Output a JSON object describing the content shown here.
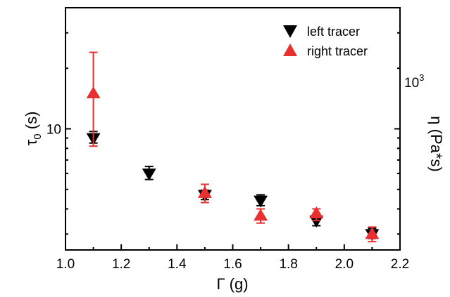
{
  "chart_data": {
    "type": "scatter",
    "xlabel": "Γ (g)",
    "ylabel_left": {
      "main": "τ",
      "sub": "0",
      "unit": " (s)"
    },
    "ylabel_right": "η (Pa*s)",
    "xlim": [
      1.0,
      2.2
    ],
    "x_ticks": [
      1.0,
      1.2,
      1.4,
      1.6,
      1.8,
      2.0,
      2.2
    ],
    "x_tick_labels": [
      "1.0",
      "1.2",
      "1.4",
      "1.6",
      "1.8",
      "2.0",
      "2.2"
    ],
    "y_left_scale": "log",
    "ylim_left": [
      2.5,
      40
    ],
    "y_left_major_tick": 10,
    "y_left_major_label": "10",
    "y_left_minor_ticks": [
      3,
      4,
      5,
      6,
      7,
      8,
      9,
      20,
      30
    ],
    "y_right_scale": "log",
    "ylim_right": [
      250,
      4000
    ],
    "y_right_major_tick": 1000,
    "y_right_major_label": {
      "base": "10",
      "exp": "3"
    },
    "y_right_minor_ticks": [
      300,
      400,
      500,
      600,
      700,
      800,
      900,
      2000,
      3000
    ],
    "grid": false,
    "legend_position": "top-right",
    "series": [
      {
        "name": "left tracer",
        "marker": "triangle-down",
        "color": "#000000",
        "x": [
          1.1,
          1.3,
          1.5,
          1.7,
          1.9,
          2.1
        ],
        "y": [
          9.0,
          6.0,
          4.7,
          4.4,
          3.5,
          3.0
        ],
        "yerr_low": [
          8.5,
          5.6,
          4.45,
          4.15,
          3.3,
          2.85
        ],
        "yerr_high": [
          9.7,
          6.5,
          4.95,
          4.7,
          3.65,
          3.2
        ]
      },
      {
        "name": "right tracer",
        "marker": "triangle-up",
        "color": "#e83030",
        "x": [
          1.1,
          1.5,
          1.7,
          1.9,
          2.1
        ],
        "y": [
          15.0,
          4.8,
          3.7,
          3.8,
          3.0
        ],
        "yerr_low": [
          8.2,
          4.3,
          3.4,
          3.5,
          2.75
        ],
        "yerr_high": [
          24.0,
          5.3,
          4.0,
          4.0,
          3.25
        ]
      }
    ]
  }
}
